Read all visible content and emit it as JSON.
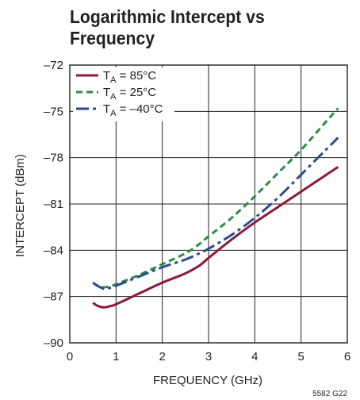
{
  "title_lines": [
    "Logarithmic Intercept vs",
    "Frequency"
  ],
  "figure_code": "5582 G22",
  "chart_data": {
    "type": "line",
    "title": "Logarithmic Intercept vs Frequency",
    "xlabel": "FREQUENCY (GHz)",
    "ylabel": "INTERCEPT (dBm)",
    "xlim": [
      0,
      6
    ],
    "ylim": [
      -90,
      -72
    ],
    "xticks": [
      0,
      1,
      2,
      3,
      4,
      5,
      6
    ],
    "yticks": [
      -72,
      -75,
      -78,
      -81,
      -84,
      -87,
      -90
    ],
    "xtick_labels": [
      "0",
      "1",
      "2",
      "3",
      "4",
      "5",
      "6"
    ],
    "ytick_labels": [
      "–72",
      "–75",
      "–78",
      "–81",
      "–84",
      "–87",
      "–90"
    ],
    "grid": true,
    "legend_position": "top-left",
    "series": [
      {
        "legend_prefix": "T",
        "legend_sub": "A",
        "legend_suffix": " = 85°C",
        "color": "#8b1a3a",
        "dash": "solid",
        "x": [
          0.5,
          0.6,
          0.75,
          0.9,
          1.0,
          1.5,
          2.0,
          2.5,
          2.8,
          3.0,
          3.5,
          4.0,
          4.5,
          5.0,
          5.5,
          5.8
        ],
        "y": [
          -87.4,
          -87.6,
          -87.7,
          -87.6,
          -87.5,
          -86.8,
          -86.1,
          -85.5,
          -85.0,
          -84.5,
          -83.3,
          -82.2,
          -81.2,
          -80.2,
          -79.2,
          -78.6
        ]
      },
      {
        "legend_prefix": "T",
        "legend_sub": "A",
        "legend_suffix": " = 25°C",
        "color": "#2e8b45",
        "dash": "8,5",
        "x": [
          0.5,
          0.6,
          0.75,
          0.9,
          1.0,
          1.5,
          2.0,
          2.5,
          2.8,
          3.0,
          3.5,
          4.0,
          4.5,
          5.0,
          5.5,
          5.8
        ],
        "y": [
          -86.1,
          -86.3,
          -86.4,
          -86.3,
          -86.2,
          -85.6,
          -84.9,
          -84.2,
          -83.6,
          -83.1,
          -81.9,
          -80.5,
          -79.0,
          -77.5,
          -75.8,
          -74.8
        ]
      },
      {
        "legend_prefix": "T",
        "legend_sub": "A",
        "legend_suffix": " = –40°C",
        "color": "#2e4a8b",
        "dash": "16,5,4,5",
        "x": [
          0.5,
          0.6,
          0.75,
          0.9,
          1.0,
          1.5,
          2.0,
          2.5,
          2.8,
          3.0,
          3.5,
          4.0,
          4.5,
          5.0,
          5.5,
          5.8
        ],
        "y": [
          -86.1,
          -86.3,
          -86.5,
          -86.4,
          -86.3,
          -85.7,
          -85.1,
          -84.6,
          -84.2,
          -83.9,
          -83.0,
          -81.9,
          -80.6,
          -79.1,
          -77.6,
          -76.7
        ]
      }
    ]
  }
}
